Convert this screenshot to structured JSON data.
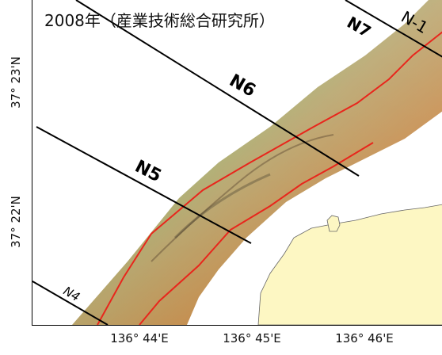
{
  "title": "2008年（産業技術総合研究所）",
  "axes": {
    "x_ticks": [
      "136° 44'E",
      "136° 45'E",
      "136° 46'E"
    ],
    "y_ticks": [
      "37° 23'N",
      "37° 22'N"
    ]
  },
  "survey_lines": [
    {
      "label": "N7"
    },
    {
      "label": "N-1"
    },
    {
      "label": "N6"
    },
    {
      "label": "N5"
    },
    {
      "label": "N4"
    }
  ],
  "colors": {
    "land": "#fdf7c3",
    "fault_trace": "#e8261c",
    "survey_line": "#000000",
    "bathy_shallow": "#7cc47a",
    "bathy_mid": "#b89a5a",
    "bathy_deep": "#c8662a"
  }
}
